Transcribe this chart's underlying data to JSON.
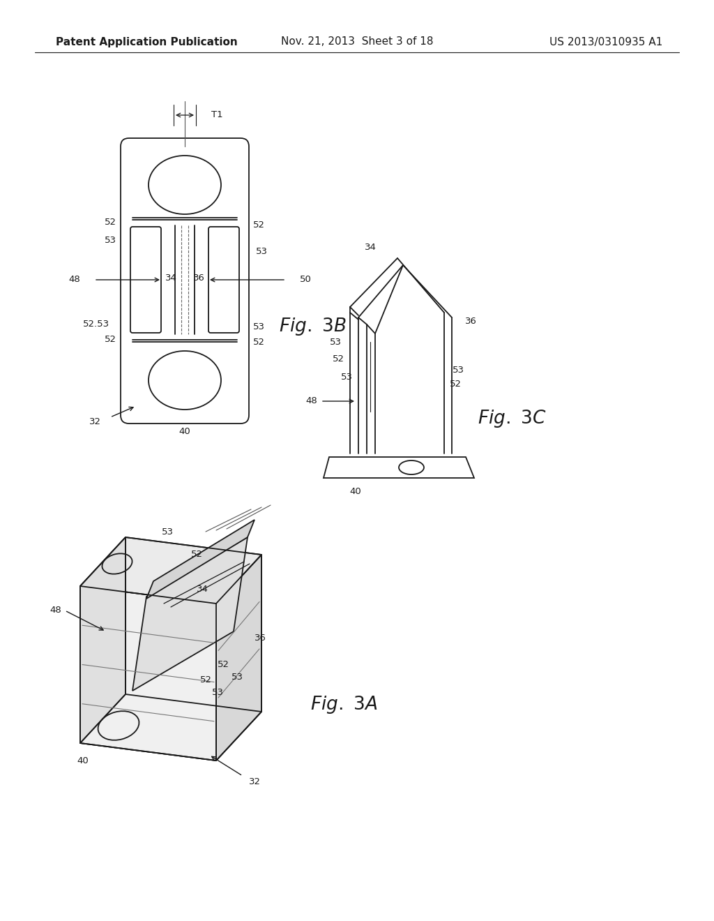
{
  "bg_color": "#ffffff",
  "header_left": "Patent Application Publication",
  "header_mid": "Nov. 21, 2013  Sheet 3 of 18",
  "header_right": "US 2013/0310935 A1",
  "header_fontsize": 11,
  "line_color": "#1a1a1a",
  "line_width": 1.3,
  "ref_fontsize": 9.5
}
